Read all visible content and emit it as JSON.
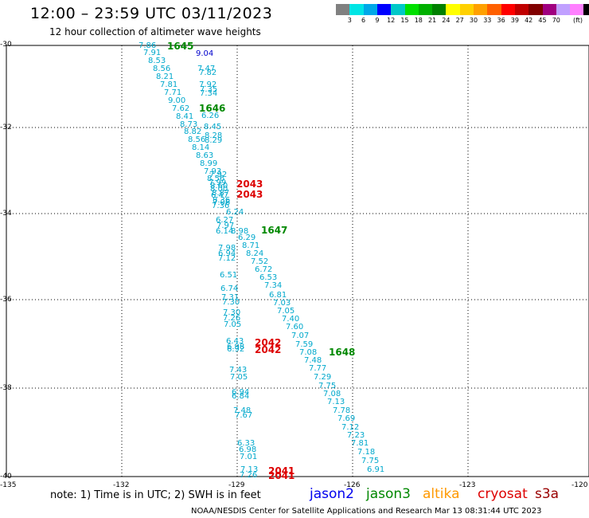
{
  "header": {
    "title": "12:00 – 23:59 UTC 03/11/2023",
    "subtitle": "12 hour collection of altimeter wave heights"
  },
  "legend": {
    "colors": [
      "#808080",
      "#00e5e5",
      "#00a8e8",
      "#0000ff",
      "#00c8c8",
      "#00e000",
      "#00b000",
      "#008000",
      "#ffff00",
      "#ffd000",
      "#ffa000",
      "#ff6000",
      "#ff0000",
      "#c00000",
      "#800000",
      "#a00080",
      "#c0a0ff",
      "#ff80ff",
      "#000000"
    ],
    "labels": [
      "3",
      "6",
      "9",
      "12",
      "15",
      "18",
      "21",
      "24",
      "27",
      "30",
      "33",
      "36",
      "39",
      "42",
      "45",
      "70"
    ],
    "unit": "(ft)"
  },
  "map": {
    "y_ticks": [
      "-30",
      "-32",
      "-34",
      "-36",
      "-38",
      "-40"
    ],
    "x_ticks": [
      "-135",
      "-132",
      "-129",
      "-126",
      "-123",
      "-120"
    ]
  },
  "footer": {
    "note": "note: 1) Time is in UTC; 2) SWH is in feet",
    "missions": [
      {
        "name": "jason2",
        "color": "#0000ee"
      },
      {
        "name": "jason3",
        "color": "#008800"
      },
      {
        "name": "altika",
        "color": "#ff9900"
      },
      {
        "name": "cryosat",
        "color": "#dd0000"
      },
      {
        "name": "s3a",
        "color": "#990000"
      }
    ],
    "credit": "NOAA/NESDIS Center for Satellite Applications and Research    Mar 13 08:31:44 UTC 2023"
  },
  "time_labels": [
    {
      "text": "1645",
      "color": "#008800"
    },
    {
      "text": "1646",
      "color": "#008800"
    },
    {
      "text": "1647",
      "color": "#008800"
    },
    {
      "text": "1648",
      "color": "#008800"
    },
    {
      "text": "2043",
      "color": "#dd0000"
    },
    {
      "text": "2043",
      "color": "#dd0000"
    },
    {
      "text": "2042",
      "color": "#dd0000"
    },
    {
      "text": "2042",
      "color": "#dd0000"
    },
    {
      "text": "2041",
      "color": "#dd0000"
    },
    {
      "text": "2041",
      "color": "#dd0000"
    }
  ],
  "measurements": [
    "7.86",
    "7.91",
    "8.53",
    "8.56",
    "8.21",
    "7.81",
    "7.71",
    "9.00",
    "7.62",
    "8.41",
    "8.73",
    "8.82",
    "8.56",
    "8.14",
    "8.63",
    "8.99",
    "7.93",
    "8.56",
    "8.60",
    "8.87",
    "8.36",
    "7.36",
    "9.04",
    "7.47",
    "7.82",
    "7.92",
    "7.35",
    "7.34",
    "6.26",
    "8.45",
    "8.28",
    "8.29",
    "7.92",
    "7.99",
    "8.00",
    "6.47",
    "7.06",
    "6.24",
    "6.27",
    "7.97",
    "6.14",
    "8.98",
    "6.29",
    "8.71",
    "8.24",
    "7.52",
    "6.72",
    "6.53",
    "7.34",
    "6.81",
    "7.03",
    "7.05",
    "7.40",
    "7.60",
    "7.07",
    "7.59",
    "7.08",
    "7.48",
    "7.77",
    "7.29",
    "7.75",
    "7.08",
    "7.13",
    "7.78",
    "7.69",
    "7.12",
    "7.23",
    "7.81",
    "7.18",
    "7.75",
    "6.91",
    "7.98",
    "6.94",
    "7.12",
    "6.51",
    "6.74",
    "7.31",
    "7.30",
    "7.30",
    "7.26",
    "7.05",
    "6.43",
    "6.98",
    "6.92",
    "7.43",
    "7.05",
    "6.94",
    "6.84",
    "7.48",
    "7.67",
    "6.33",
    "6.98",
    "7.01",
    "7.13",
    "7.26"
  ]
}
